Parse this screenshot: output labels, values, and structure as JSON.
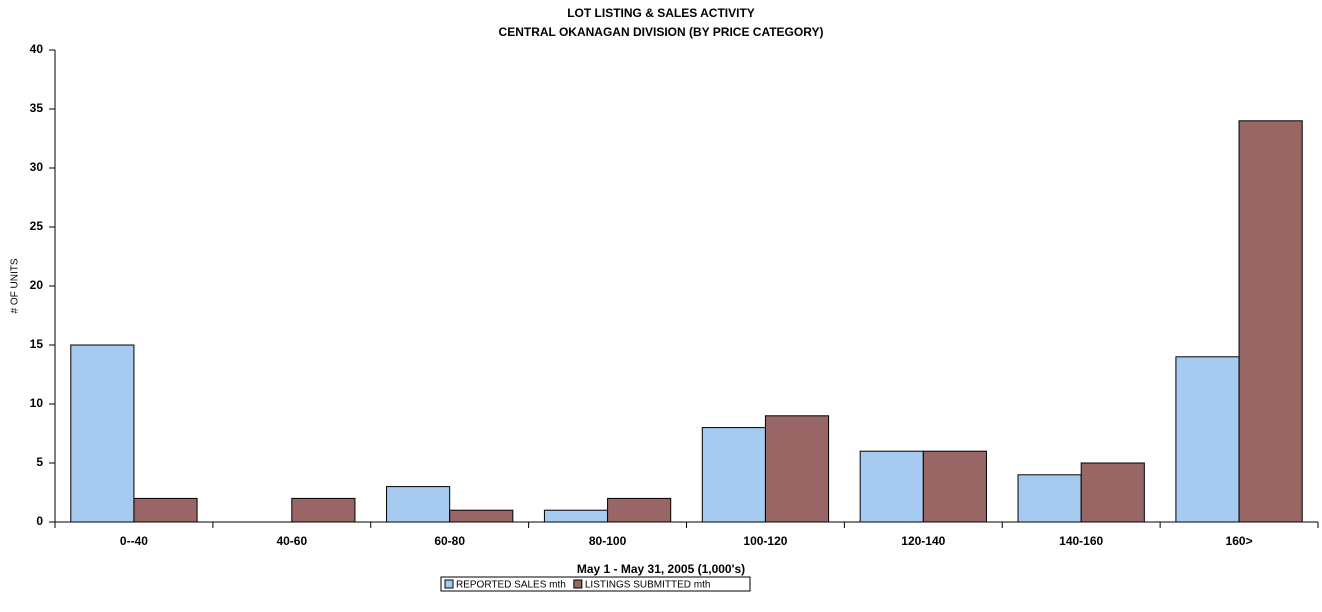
{
  "chart_data": {
    "type": "bar",
    "title": "LOT LISTING & SALES ACTIVITY",
    "subtitle": "CENTRAL OKANAGAN DIVISION (BY PRICE CATEGORY)",
    "x_label": "May 1 - May 31, 2005 (1,000's)",
    "y_label": "# OF UNITS",
    "categories": [
      "0--40",
      "40-60",
      "60-80",
      "80-100",
      "100-120",
      "120-140",
      "140-160",
      "160>"
    ],
    "series": [
      {
        "name": "REPORTED SALES mth",
        "color": "#a6caf0",
        "values": [
          15,
          0,
          3,
          1,
          8,
          6,
          4,
          14
        ]
      },
      {
        "name": "LISTINGS SUBMITTED mth",
        "color": "#996666",
        "values": [
          2,
          2,
          1,
          2,
          9,
          6,
          5,
          34
        ]
      }
    ],
    "ylim": [
      0,
      40
    ],
    "yticks": [
      0,
      5,
      10,
      15,
      20,
      25,
      30,
      35,
      40
    ],
    "grid": false,
    "legend": "bottom"
  }
}
